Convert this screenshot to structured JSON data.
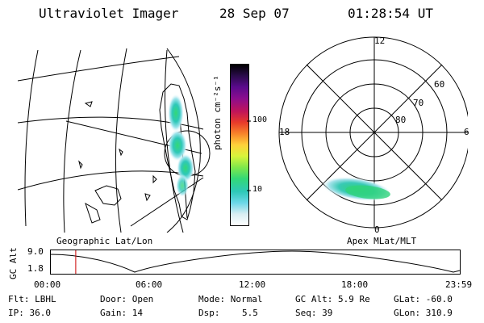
{
  "header": {
    "instrument": "Ultraviolet Imager",
    "date": "28 Sep 07",
    "time": "01:28:54 UT"
  },
  "colorbar": {
    "unit_label": "photon cm⁻²s⁻¹",
    "ticks": [
      "100",
      "10"
    ],
    "colors": [
      "#000000",
      "#2a0b4a",
      "#5b0a8c",
      "#8b0d8e",
      "#c0145a",
      "#e83a2a",
      "#f7842a",
      "#ffd23a",
      "#d8f43b",
      "#7fe84b",
      "#33d877",
      "#2ec8b8",
      "#6cd8e8",
      "#d8eef2",
      "#ffffff"
    ]
  },
  "geo_map": {
    "label": "Geographic Lat/Lon"
  },
  "polar_plot": {
    "label": "Apex MLat/MLT",
    "mlt_labels": {
      "top": "12",
      "left": "18",
      "right": "6",
      "bottom": "0"
    },
    "lat_labels": [
      "60",
      "70",
      "80"
    ]
  },
  "orbit": {
    "ylabel": "GC Alt",
    "yticks": [
      "9.0",
      "1.8"
    ],
    "xticks": [
      "00:00",
      "06:00",
      "12:00",
      "18:00",
      "23:59"
    ],
    "current_time_fraction": 0.0618
  },
  "footer": {
    "filter": "Flt: LBHL",
    "ip": "IP: 36.0",
    "door": "Door: Open",
    "gain": "Gain: 14",
    "mode": "Mode: Normal",
    "dsp_label": "Dsp:",
    "dsp_value": "5.5",
    "gc_alt": "GC Alt: 5.9 Re",
    "seq": "Seq: 39",
    "glat": "GLat: -60.0",
    "glon": "GLon: 310.9"
  }
}
